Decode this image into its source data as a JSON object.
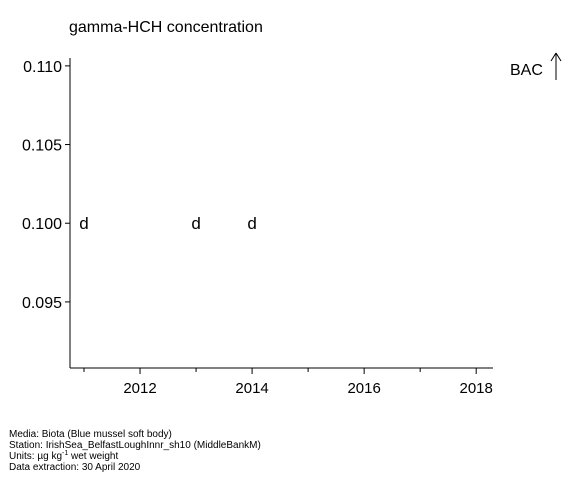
{
  "chart_data": {
    "type": "scatter",
    "title": "gamma-HCH concentration",
    "xlabel": "",
    "ylabel": "",
    "xlim": [
      2010.75,
      2018.3
    ],
    "ylim": [
      0.0908,
      0.1105
    ],
    "x_ticks": [
      2012,
      2014,
      2016,
      2018
    ],
    "x_minor_ticks": [
      2011,
      2013,
      2015,
      2017
    ],
    "y_ticks": [
      0.095,
      0.1,
      0.105,
      0.11
    ],
    "y_tick_labels": [
      "0.095",
      "0.100",
      "0.105",
      "0.110"
    ],
    "grid": false,
    "series": [
      {
        "marker_text": "d",
        "points": [
          {
            "x": 2011,
            "y": 0.1
          },
          {
            "x": 2013,
            "y": 0.1
          },
          {
            "x": 2014,
            "y": 0.1
          }
        ]
      }
    ],
    "annotations": [
      {
        "text": "BAC",
        "symbol": "↑"
      }
    ]
  },
  "footer": {
    "media": "Media: Biota (Blue mussel soft body)",
    "station": "Station: IrishSea_BelfastLoughInnr_sh10 (MiddleBankM)",
    "units_prefix": "Units:  µg kg",
    "units_sup": "-1",
    "units_suffix": " wet weight",
    "extraction": "Data extraction: 30 April 2020"
  }
}
